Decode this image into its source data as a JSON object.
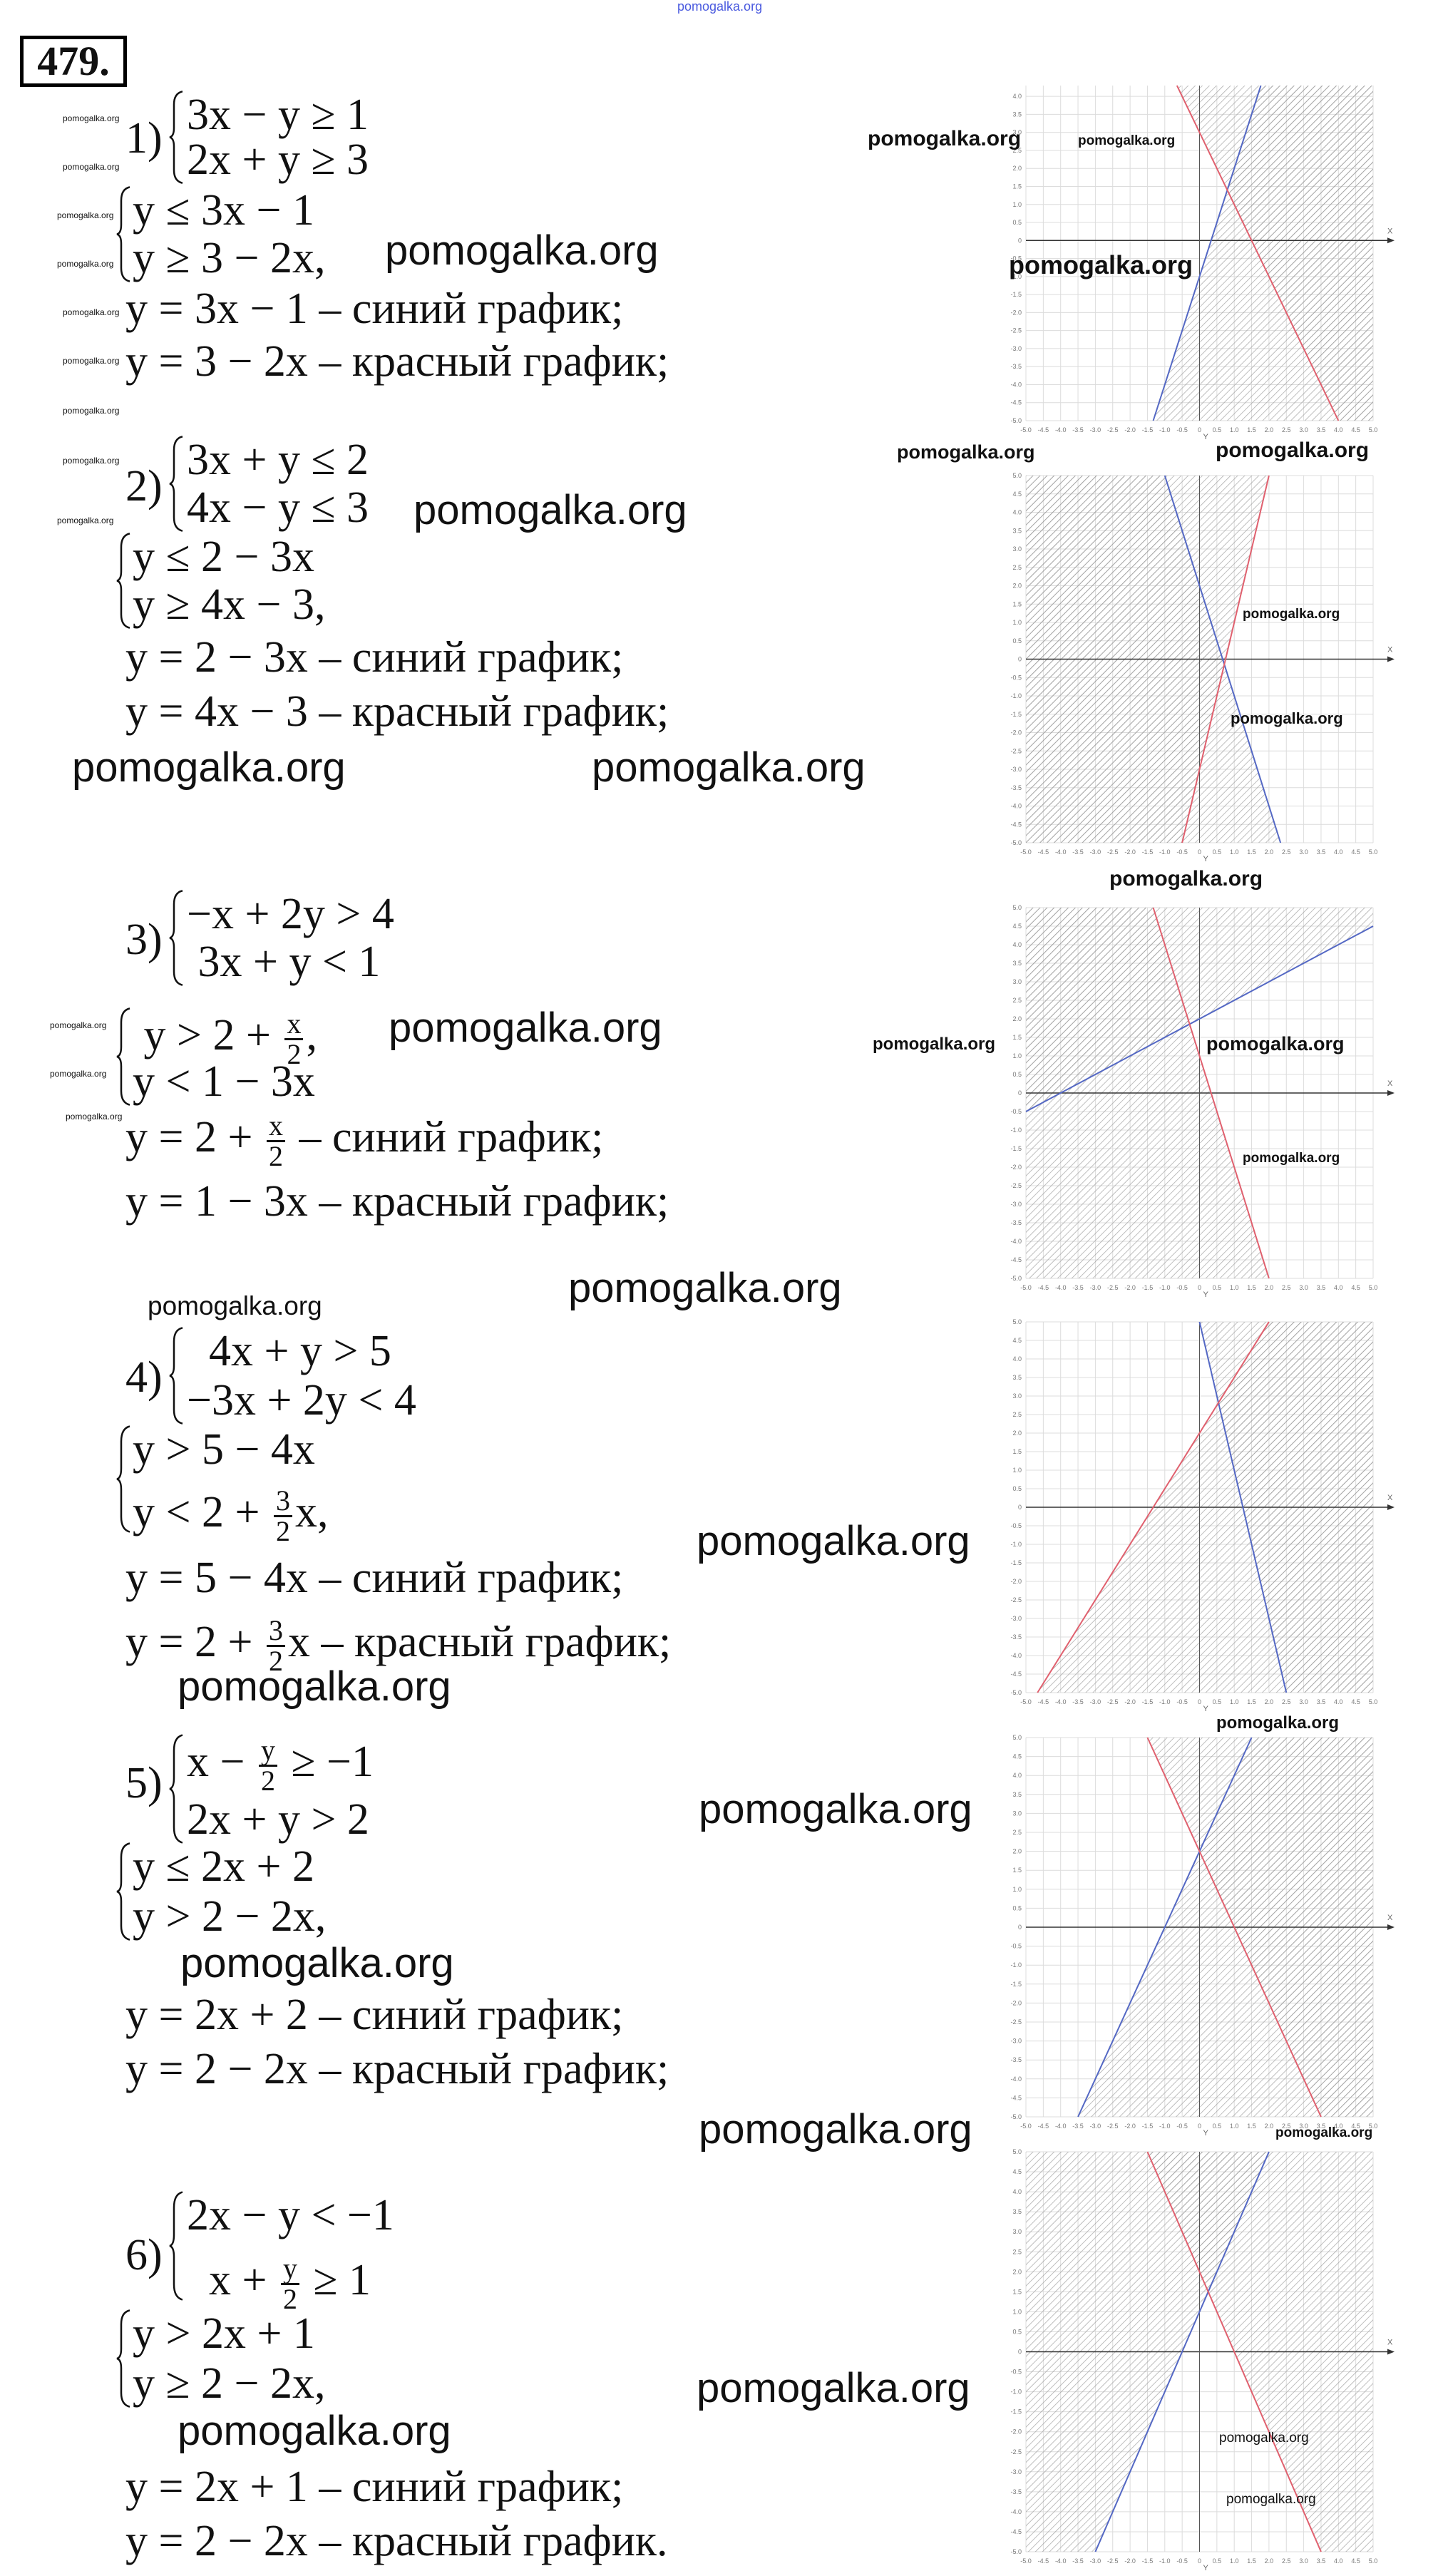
{
  "problem_number": "479.",
  "watermark": "pomogalka.org",
  "colors": {
    "blue_line": "#5468c4",
    "red_line": "#e0606e",
    "hatch": "#9a9a9a",
    "grid": "#dcdcdc",
    "axis": "#333333"
  },
  "sections": [
    {
      "label": "1)",
      "system": [
        {
          "pre": "3x − y ≥ 1"
        },
        {
          "pre": "2x + y ≥ 3"
        }
      ],
      "derived": [
        {
          "pre": "y ≤ 3x − 1"
        },
        {
          "pre": "y ≥ 3 − 2x,"
        }
      ],
      "graphs": [
        {
          "pre": "y = 3x − 1 – синий график;"
        },
        {
          "pre": "y = 3 − 2x – красный график;"
        }
      ]
    },
    {
      "label": "2)",
      "system": [
        {
          "pre": "3x + y ≤ 2"
        },
        {
          "pre": "4x − y ≤ 3"
        }
      ],
      "derived": [
        {
          "pre": "y ≤ 2 − 3x"
        },
        {
          "pre": "y ≥ 4x − 3,"
        }
      ],
      "graphs": [
        {
          "pre": "y = 2 − 3x – синий график;"
        },
        {
          "pre": "y = 4x − 3 – красный график;"
        }
      ]
    },
    {
      "label": "3)",
      "system": [
        {
          "pre": "−x + 2y > 4"
        },
        {
          "pre": " 3x + y < 1"
        }
      ],
      "derived": [
        {
          "pre": " y > 2 + ",
          "num": "x",
          "den": "2",
          "post": ","
        },
        {
          "pre": "y < 1 − 3x"
        }
      ],
      "graphs": [
        {
          "pre": "y = 2 + ",
          "num": "x",
          "den": "2",
          "post": " – синий график;"
        },
        {
          "pre": "y = 1 − 3x – красный график;"
        }
      ]
    },
    {
      "label": "4)",
      "system": [
        {
          "pre": "  4x + y > 5"
        },
        {
          "pre": "−3x + 2y < 4"
        }
      ],
      "derived": [
        {
          "pre": "y > 5 − 4x"
        },
        {
          "pre": "y < 2 + ",
          "num": "3",
          "den": "2",
          "post": "x,"
        }
      ],
      "graphs": [
        {
          "pre": "y = 5 − 4x – синий график;"
        },
        {
          "pre": "y = 2 + ",
          "num": "3",
          "den": "2",
          "post": "x – красный график;"
        }
      ]
    },
    {
      "label": "5)",
      "system": [
        {
          "pre": "x − ",
          "num": "y",
          "den": "2",
          "post": " ≥ −1"
        },
        {
          "pre": "2x + y > 2"
        }
      ],
      "derived": [
        {
          "pre": "y ≤ 2x + 2"
        },
        {
          "pre": "y > 2 − 2x,"
        }
      ],
      "graphs": [
        {
          "pre": "y = 2x + 2 – синий график;"
        },
        {
          "pre": "y = 2 − 2x – красный график;"
        }
      ]
    },
    {
      "label": "6)",
      "system": [
        {
          "pre": "2x − y < −1"
        },
        {
          "pre": "  x + ",
          "num": "y",
          "den": "2",
          "post": " ≥ 1"
        }
      ],
      "derived": [
        {
          "pre": "y > 2x + 1"
        },
        {
          "pre": "y ≥ 2 − 2x,"
        }
      ],
      "graphs": [
        {
          "pre": "y = 2x + 1 – синий график;"
        },
        {
          "pre": "y = 2 − 2x – красный график."
        }
      ]
    }
  ],
  "chart_data": [
    {
      "type": "line",
      "xlabel": "X",
      "ylabel": "Y",
      "xlim": [
        -5,
        5
      ],
      "ylim": [
        -5,
        4.3
      ],
      "x_ticks_step": 0.5,
      "y_ticks_step": 0.5,
      "grid": true,
      "series": [
        {
          "color": "blue",
          "slope": 3,
          "intercept": -1,
          "shaded": "below"
        },
        {
          "color": "red",
          "slope": -2,
          "intercept": 3,
          "shaded": "above"
        }
      ]
    },
    {
      "type": "line",
      "xlabel": "X",
      "ylabel": "Y",
      "xlim": [
        -5,
        5
      ],
      "ylim": [
        -5,
        5
      ],
      "x_ticks_step": 0.5,
      "y_ticks_step": 0.5,
      "grid": true,
      "series": [
        {
          "color": "blue",
          "slope": -3,
          "intercept": 2,
          "shaded": "below"
        },
        {
          "color": "red",
          "slope": 4,
          "intercept": -3,
          "shaded": "above"
        }
      ]
    },
    {
      "type": "line",
      "xlabel": "X",
      "ylabel": "Y",
      "xlim": [
        -5,
        5
      ],
      "ylim": [
        -5,
        5
      ],
      "x_ticks_step": 0.5,
      "y_ticks_step": 0.5,
      "grid": true,
      "series": [
        {
          "color": "blue",
          "slope": 0.5,
          "intercept": 2,
          "shaded": "above"
        },
        {
          "color": "red",
          "slope": -3,
          "intercept": 1,
          "shaded": "below"
        }
      ]
    },
    {
      "type": "line",
      "xlabel": "X",
      "ylabel": "Y",
      "xlim": [
        -5,
        5
      ],
      "ylim": [
        -5,
        5
      ],
      "x_ticks_step": 0.5,
      "y_ticks_step": 0.5,
      "grid": true,
      "series": [
        {
          "color": "blue",
          "slope": -4,
          "intercept": 5,
          "shaded": "above"
        },
        {
          "color": "red",
          "slope": 1.5,
          "intercept": 2,
          "shaded": "below"
        }
      ]
    },
    {
      "type": "line",
      "xlabel": "X",
      "ylabel": "Y",
      "xlim": [
        -5,
        5
      ],
      "ylim": [
        -5,
        5
      ],
      "x_ticks_step": 0.5,
      "y_ticks_step": 0.5,
      "grid": true,
      "series": [
        {
          "color": "blue",
          "slope": 2,
          "intercept": 2,
          "shaded": "below"
        },
        {
          "color": "red",
          "slope": -2,
          "intercept": 2,
          "shaded": "above"
        }
      ]
    },
    {
      "type": "line",
      "xlabel": "X",
      "ylabel": "Y",
      "xlim": [
        -5,
        5
      ],
      "ylim": [
        -5,
        5
      ],
      "x_ticks_step": 0.5,
      "y_ticks_step": 0.5,
      "grid": true,
      "series": [
        {
          "color": "blue",
          "slope": 2,
          "intercept": 1,
          "shaded": "above"
        },
        {
          "color": "red",
          "slope": -2,
          "intercept": 2,
          "shaded": "above"
        }
      ]
    }
  ]
}
